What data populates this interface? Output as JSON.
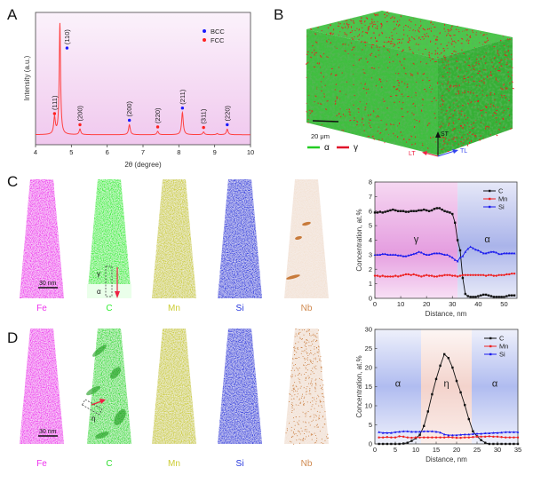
{
  "panels": {
    "A": {
      "label": "A"
    },
    "B": {
      "label": "B",
      "scale_bar": "20 μm",
      "legend": [
        {
          "symbol": "α",
          "color": "#22cc22"
        },
        {
          "symbol": "γ",
          "color": "#e0102a"
        }
      ],
      "axes": {
        "st": "ST",
        "lt": "LT",
        "tl": "TL"
      },
      "colors": {
        "matrix": "#3fbf3f",
        "austenite": "#ee1c1c"
      }
    },
    "C": {
      "label": "C",
      "scale_bar": "30 nm",
      "region_labels": {
        "gamma": "γ",
        "alpha": "α"
      },
      "tips": [
        {
          "element": "Fe",
          "color": "#ee33ee"
        },
        {
          "element": "C",
          "color": "#33ee33"
        },
        {
          "element": "Mn",
          "color": "#cccc33"
        },
        {
          "element": "Si",
          "color": "#2233dd"
        },
        {
          "element": "Nb",
          "color": "#d08a50"
        }
      ]
    },
    "D": {
      "label": "D",
      "scale_bar": "30 nm",
      "region_labels": {
        "eta": "η"
      },
      "tips": [
        {
          "element": "Fe",
          "color": "#ee33ee"
        },
        {
          "element": "C",
          "color": "#33dd33"
        },
        {
          "element": "Mn",
          "color": "#cccc33"
        },
        {
          "element": "Si",
          "color": "#2233dd"
        },
        {
          "element": "Nb",
          "color": "#d08a50"
        }
      ]
    }
  },
  "chart_data": [
    {
      "id": "xrd",
      "type": "line",
      "xlabel": "2θ (degree)",
      "ylabel": "Intensity (a.u.)",
      "xlim": [
        4,
        10
      ],
      "ylim": [
        -9,
        110
      ],
      "xticks": [
        4,
        5,
        6,
        7,
        8,
        9,
        10
      ],
      "legend": [
        {
          "name": "BCC",
          "color": "#1a1aff"
        },
        {
          "name": "FCC",
          "color": "#ff2020"
        }
      ],
      "legend_position": "top-right",
      "line_color": "#ff4040",
      "peaks": [
        {
          "two_theta": 4.53,
          "intensity": 15,
          "hkl": "(111)",
          "phase": "FCC"
        },
        {
          "two_theta": 4.68,
          "intensity": 100,
          "hkl": "(110)",
          "phase": "BCC"
        },
        {
          "two_theta": 5.24,
          "intensity": 5,
          "hkl": "(200)",
          "phase": "FCC"
        },
        {
          "two_theta": 6.62,
          "intensity": 9,
          "hkl": "(200)",
          "phase": "BCC"
        },
        {
          "two_theta": 7.41,
          "intensity": 3,
          "hkl": "(220)",
          "phase": "FCC"
        },
        {
          "two_theta": 8.1,
          "intensity": 20,
          "hkl": "(211)",
          "phase": "BCC"
        },
        {
          "two_theta": 8.69,
          "intensity": 2.5,
          "hkl": "(311)",
          "phase": "FCC"
        },
        {
          "two_theta": 9.07,
          "intensity": 1,
          "hkl": "",
          "phase": ""
        },
        {
          "two_theta": 9.35,
          "intensity": 5,
          "hkl": "(220)",
          "phase": "BCC"
        }
      ]
    },
    {
      "id": "apt-c",
      "type": "line",
      "xlabel": "Distance, nm",
      "ylabel": "Concentration, at.%",
      "xlim": [
        0,
        55
      ],
      "ylim": [
        0,
        8
      ],
      "xticks": [
        0,
        10,
        20,
        30,
        40,
        50
      ],
      "yticks": [
        0,
        1,
        2,
        3,
        4,
        5,
        6,
        7,
        8
      ],
      "legend_position": "top-right",
      "regions": [
        {
          "from": 0,
          "to": 32,
          "label": "γ",
          "color": "#e070d0"
        },
        {
          "from": 32,
          "to": 55,
          "label": "α",
          "color": "#8090e0"
        }
      ],
      "x": [
        0,
        1,
        2,
        3,
        4,
        5,
        6,
        7,
        8,
        9,
        10,
        11,
        12,
        13,
        14,
        15,
        16,
        17,
        18,
        19,
        20,
        21,
        22,
        23,
        24,
        25,
        26,
        27,
        28,
        29,
        30,
        31,
        32,
        33,
        34,
        35,
        36,
        37,
        38,
        39,
        40,
        41,
        42,
        43,
        44,
        45,
        46,
        47,
        48,
        49,
        50,
        51,
        52,
        53,
        54
      ],
      "series": [
        {
          "name": "C",
          "color": "#111111",
          "marker": "square",
          "values": [
            5.9,
            5.9,
            5.95,
            5.9,
            5.95,
            6.0,
            6.05,
            6.1,
            6.05,
            6.0,
            6.0,
            6.0,
            5.95,
            5.95,
            6.0,
            6.0,
            6.0,
            6.05,
            6.05,
            6.1,
            6.05,
            6.0,
            6.05,
            6.15,
            6.2,
            6.2,
            6.1,
            6.0,
            5.95,
            5.9,
            5.8,
            5.2,
            4.0,
            3.3,
            1.4,
            0.3,
            0.15,
            0.1,
            0.1,
            0.1,
            0.15,
            0.2,
            0.25,
            0.25,
            0.2,
            0.15,
            0.1,
            0.1,
            0.1,
            0.1,
            0.1,
            0.15,
            0.2,
            0.2,
            0.2
          ]
        },
        {
          "name": "Mn",
          "color": "#ee2020",
          "marker": "circle",
          "values": [
            1.55,
            1.55,
            1.5,
            1.55,
            1.5,
            1.5,
            1.5,
            1.5,
            1.55,
            1.5,
            1.55,
            1.6,
            1.65,
            1.65,
            1.6,
            1.65,
            1.6,
            1.55,
            1.5,
            1.55,
            1.6,
            1.55,
            1.55,
            1.5,
            1.5,
            1.55,
            1.55,
            1.6,
            1.6,
            1.6,
            1.55,
            1.55,
            1.5,
            1.55,
            1.6,
            1.6,
            1.6,
            1.6,
            1.6,
            1.6,
            1.6,
            1.6,
            1.6,
            1.55,
            1.6,
            1.6,
            1.55,
            1.55,
            1.6,
            1.6,
            1.6,
            1.65,
            1.65,
            1.7,
            1.7
          ]
        },
        {
          "name": "Si",
          "color": "#1a1aee",
          "marker": "triangle",
          "values": [
            3.0,
            3.0,
            3.0,
            3.05,
            3.05,
            3.0,
            3.0,
            3.0,
            3.0,
            2.95,
            2.95,
            2.9,
            2.9,
            2.95,
            3.0,
            3.05,
            3.1,
            3.2,
            3.15,
            3.05,
            3.0,
            3.0,
            3.05,
            3.1,
            3.1,
            3.1,
            3.05,
            3.0,
            3.0,
            2.9,
            2.8,
            2.65,
            2.55,
            2.8,
            2.9,
            3.2,
            3.4,
            3.55,
            3.45,
            3.35,
            3.3,
            3.2,
            3.1,
            3.1,
            3.15,
            3.2,
            3.2,
            3.15,
            3.05,
            3.05,
            3.1,
            3.1,
            3.1,
            3.1,
            3.1
          ]
        }
      ]
    },
    {
      "id": "apt-d",
      "type": "line",
      "xlabel": "Distance, nm",
      "ylabel": "Concentration, at.%",
      "xlim": [
        0,
        35
      ],
      "ylim": [
        0,
        30
      ],
      "xticks": [
        0,
        5,
        10,
        15,
        20,
        25,
        30,
        35
      ],
      "yticks": [
        0,
        5,
        10,
        15,
        20,
        25,
        30
      ],
      "legend_position": "top-right",
      "regions": [
        {
          "from": 0,
          "to": 11.3,
          "label": "α",
          "color": "#8090e0"
        },
        {
          "from": 11.3,
          "to": 23.7,
          "label": "η",
          "color": "#f0c8c0"
        },
        {
          "from": 23.7,
          "to": 35,
          "label": "α",
          "color": "#8090e0"
        }
      ],
      "x": [
        1,
        2,
        3,
        4,
        5,
        6,
        7,
        8,
        9,
        10,
        11,
        12,
        13,
        14,
        15,
        16,
        17,
        18,
        19,
        20,
        21,
        22,
        23,
        24,
        25,
        26,
        27,
        28,
        29,
        30,
        31,
        32,
        33,
        34,
        35
      ],
      "series": [
        {
          "name": "C",
          "color": "#111111",
          "marker": "square",
          "values": [
            0,
            0,
            0,
            0,
            0,
            0,
            0.1,
            0.3,
            0.8,
            1.5,
            2.4,
            4.7,
            8.5,
            13,
            17,
            20.5,
            23.5,
            22.5,
            20,
            16.5,
            13.5,
            10.2,
            6.5,
            3.3,
            2.0,
            1.0,
            0.3,
            0,
            0,
            0,
            0,
            0,
            0,
            0,
            0
          ]
        },
        {
          "name": "Mn",
          "color": "#ee2020",
          "marker": "circle",
          "values": [
            1.7,
            1.7,
            1.8,
            1.7,
            1.7,
            2.0,
            1.9,
            1.7,
            1.6,
            1.7,
            1.7,
            1.7,
            1.7,
            1.7,
            1.7,
            1.7,
            1.7,
            1.8,
            1.7,
            1.6,
            1.6,
            1.7,
            1.7,
            1.8,
            1.9,
            1.9,
            1.9,
            2.0,
            1.9,
            1.9,
            1.8,
            1.7,
            1.7,
            1.7,
            1.7
          ]
        },
        {
          "name": "Si",
          "color": "#1a1aee",
          "marker": "triangle",
          "values": [
            3.1,
            2.9,
            2.9,
            2.9,
            3.1,
            3.2,
            3.3,
            3.3,
            3.2,
            3.2,
            3.2,
            3.3,
            3.3,
            3.3,
            3.2,
            3.0,
            2.5,
            2.3,
            2.3,
            2.3,
            2.4,
            2.5,
            2.5,
            2.6,
            2.7,
            2.7,
            2.8,
            2.8,
            2.9,
            2.9,
            3.0,
            3.1,
            3.1,
            3.1,
            3.1
          ]
        }
      ]
    }
  ]
}
